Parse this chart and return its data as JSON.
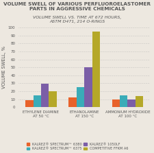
{
  "title": "VOLUME SWELL OF VARIOUS PERFLUOROELASTOMER PARTS IN AGGRESSIVE CHEMICALS",
  "subtitle": "VOLUME SWELL VS. TIME AT 672 HOURS,\nASTM D471, 214 O-RINGS",
  "ylabel": "VOLUME SWELL, %",
  "ylim": [
    0,
    100
  ],
  "yticks": [
    0,
    10,
    20,
    30,
    40,
    50,
    60,
    70,
    80,
    90,
    100
  ],
  "groups": [
    "ETHYLENE DIAMINE\nAT 50 °C",
    "ETHANOLAMINE\nAT 150 °C",
    "AMMONIUM HYDROXIDE\nAT 100 °C"
  ],
  "series_names": [
    "KALREZ® SPECTRUM™ 6380",
    "KALREZ® SPECTRUM™ 6375",
    "KALREZ® 1050LF",
    "COMPETITIVE FFKM A6"
  ],
  "series_colors": [
    "#E8622A",
    "#3AACB8",
    "#7B5EA7",
    "#B5A829"
  ],
  "values": [
    [
      9,
      15,
      29,
      20
    ],
    [
      12,
      25,
      50,
      95
    ],
    [
      10,
      15,
      10,
      14
    ]
  ],
  "bar_width": 0.18,
  "background_color": "#EDE8E0",
  "title_fontsize": 5.2,
  "subtitle_fontsize": 4.5,
  "ylabel_fontsize": 4.8,
  "tick_fontsize": 4.0,
  "legend_fontsize": 3.6
}
